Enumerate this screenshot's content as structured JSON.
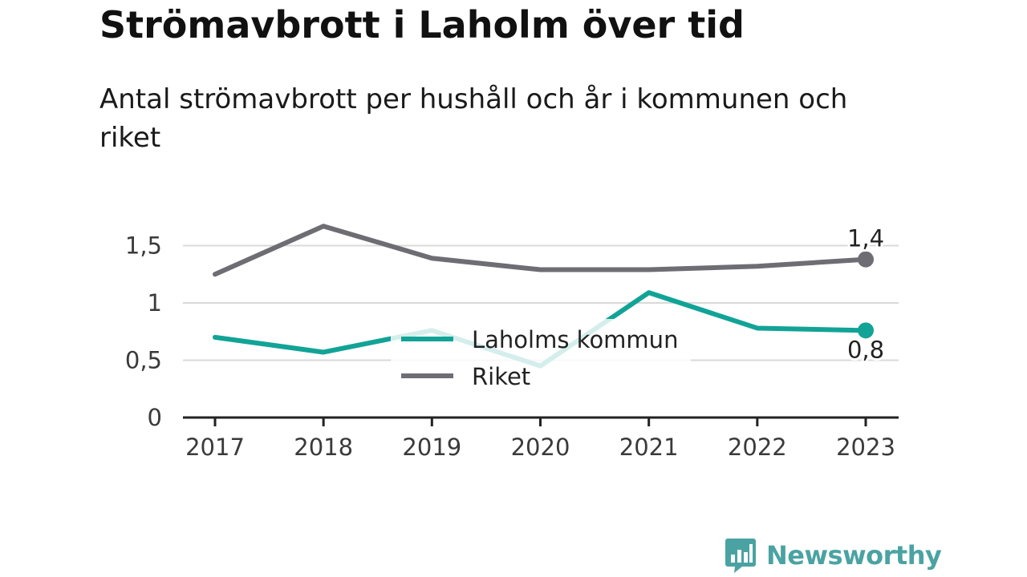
{
  "title": "Strömavbrott i Laholm över tid",
  "subtitle": "Antal strömavbrott per hushåll och år i kommunen och riket",
  "brand": {
    "name": "Newsworthy",
    "color": "#4aa3a2",
    "icon": "bar-chart-speech-bubble-icon"
  },
  "colors": {
    "laholm": "#12a397",
    "riket": "#6e6d73",
    "grid": "#d9d9d9",
    "axis": "#222222"
  },
  "chart_data": {
    "type": "line",
    "title": "Strömavbrott i Laholm över tid",
    "subtitle": "Antal strömavbrott per hushåll och år i kommunen och riket",
    "xlabel": "",
    "ylabel": "",
    "x": [
      "2017",
      "2018",
      "2019",
      "2020",
      "2021",
      "2022",
      "2023"
    ],
    "ylim": [
      0,
      1.8
    ],
    "yticks": [
      0,
      0.5,
      1,
      1.5
    ],
    "ytick_labels": [
      "0",
      "0,5",
      "1",
      "1,5"
    ],
    "grid": true,
    "legend": "center",
    "series": [
      {
        "name": "Laholms kommun",
        "color": "#12a397",
        "values": [
          0.7,
          0.57,
          0.76,
          0.45,
          1.09,
          0.78,
          0.76
        ],
        "end_label": "0,8"
      },
      {
        "name": "Riket",
        "color": "#6e6d73",
        "values": [
          1.25,
          1.67,
          1.39,
          1.29,
          1.29,
          1.32,
          1.38
        ],
        "end_label": "1,4"
      }
    ]
  }
}
